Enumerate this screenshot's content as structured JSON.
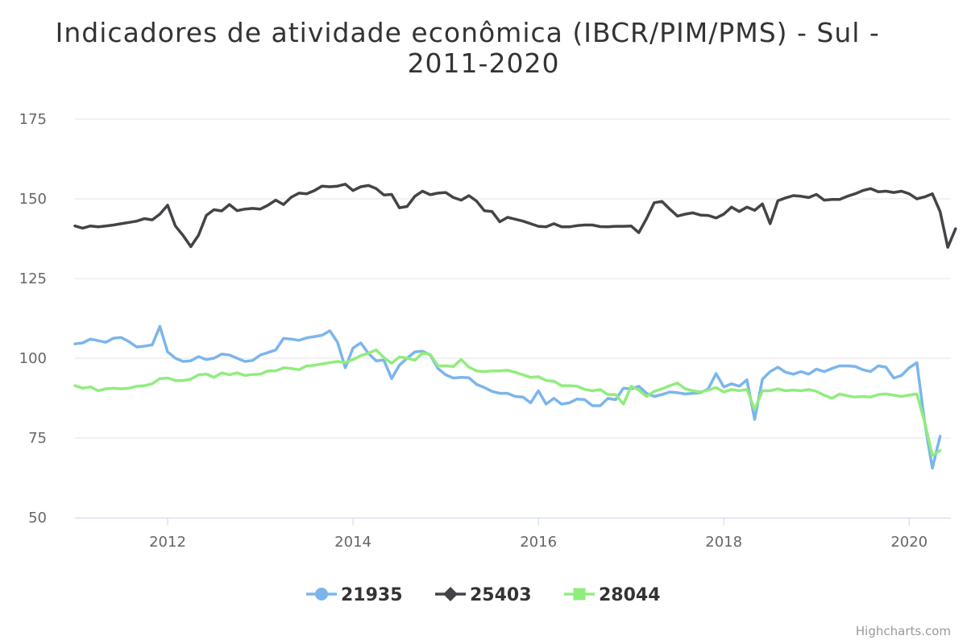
{
  "chart_data": {
    "type": "line",
    "title": "Indicadores de atividade econômica (IBCR/PIM/PMS) - Sul -",
    "title_line2": "2011-2020",
    "credits": "Highcharts.com",
    "xlim": [
      2011.0,
      2020.45
    ],
    "ylim": [
      50,
      175
    ],
    "y_ticks": [
      "50",
      "75",
      "100",
      "125",
      "150",
      "175"
    ],
    "x_ticks": [
      "2012",
      "2014",
      "2016",
      "2018",
      "2020"
    ],
    "grid": true,
    "legend_position": "bottom-center",
    "series": [
      {
        "name": "21935",
        "color": "#7cb5ec",
        "marker": "circle",
        "start": 2011.0,
        "step_months": 1,
        "values": [
          104.5,
          104.8,
          106.0,
          105.5,
          105.0,
          106.3,
          106.5,
          105.2,
          103.5,
          103.8,
          104.2,
          110.0,
          102.0,
          100.0,
          99.0,
          99.2,
          100.5,
          99.6,
          100.0,
          101.3,
          101.0,
          100.0,
          99.0,
          99.3,
          101.0,
          101.8,
          102.6,
          106.2,
          106.0,
          105.6,
          106.4,
          106.8,
          107.2,
          108.6,
          105.0,
          97.0,
          103.2,
          104.8,
          101.5,
          99.2,
          99.4,
          93.6,
          97.8,
          100.0,
          102.0,
          102.2,
          101.0,
          96.8,
          94.8,
          93.8,
          94.0,
          93.9,
          91.8,
          90.8,
          89.6,
          89.0,
          89.0,
          88.0,
          87.8,
          86.0,
          89.8,
          85.6,
          87.4,
          85.6,
          86.0,
          87.2,
          87.0,
          85.1,
          85.1,
          87.4,
          87.0,
          90.6,
          90.4,
          91.2,
          89.0,
          88.0,
          88.6,
          89.4,
          89.2,
          88.8,
          89.0,
          89.2,
          90.4,
          95.2,
          91.0,
          92.0,
          91.2,
          93.2,
          80.8,
          93.4,
          95.8,
          97.2,
          95.6,
          95.0,
          95.8,
          95.0,
          96.6,
          95.8,
          96.8,
          97.6,
          97.6,
          97.4,
          96.4,
          95.8,
          97.6,
          97.2,
          93.8,
          94.6,
          97.0,
          98.6,
          80.0,
          65.5,
          75.5
        ]
      },
      {
        "name": "25403",
        "color": "#434348",
        "marker": "diamond",
        "start": 2011.0,
        "step_months": 1,
        "values": [
          141.5,
          140.8,
          141.5,
          141.2,
          141.5,
          141.8,
          142.2,
          142.6,
          143.0,
          143.8,
          143.4,
          145.2,
          148.0,
          141.5,
          138.5,
          135.0,
          138.6,
          144.8,
          146.6,
          146.2,
          148.2,
          146.3,
          146.8,
          147.0,
          146.8,
          148.0,
          149.6,
          148.2,
          150.5,
          151.8,
          151.6,
          152.6,
          154.0,
          153.8,
          154.0,
          154.6,
          152.6,
          153.8,
          154.2,
          153.2,
          151.2,
          151.4,
          147.2,
          147.6,
          150.8,
          152.4,
          151.3,
          151.8,
          152.0,
          150.4,
          149.6,
          151.0,
          149.3,
          146.3,
          146.0,
          142.8,
          144.2,
          143.6,
          143.0,
          142.2,
          141.4,
          141.2,
          142.2,
          141.2,
          141.2,
          141.6,
          141.8,
          141.8,
          141.3,
          141.2,
          141.4,
          141.4,
          141.5,
          139.4,
          143.8,
          148.8,
          149.2,
          146.8,
          144.6,
          145.2,
          145.6,
          144.9,
          144.8,
          144.0,
          145.2,
          147.4,
          146.0,
          147.4,
          146.4,
          148.4,
          142.2,
          149.4,
          150.3,
          151.0,
          150.8,
          150.4,
          151.4,
          149.6,
          149.8,
          149.8,
          150.8,
          151.6,
          152.6,
          153.2,
          152.2,
          152.4,
          152.0,
          152.4,
          151.6,
          150.0,
          150.6,
          151.6,
          146.0,
          134.8,
          140.6
        ]
      },
      {
        "name": "28044",
        "color": "#90ed7d",
        "marker": "square",
        "start": 2011.0,
        "step_months": 1,
        "values": [
          91.4,
          90.6,
          91.0,
          89.8,
          90.4,
          90.6,
          90.4,
          90.6,
          91.2,
          91.4,
          92.0,
          93.6,
          93.8,
          93.0,
          93.0,
          93.4,
          94.8,
          95.0,
          94.0,
          95.4,
          94.8,
          95.4,
          94.6,
          94.9,
          95.0,
          96.0,
          96.0,
          97.0,
          96.8,
          96.4,
          97.6,
          97.8,
          98.2,
          98.6,
          99.0,
          98.6,
          99.6,
          100.8,
          101.6,
          102.6,
          100.2,
          98.4,
          100.4,
          100.0,
          99.4,
          101.6,
          101.2,
          97.6,
          97.6,
          97.4,
          99.6,
          97.2,
          96.0,
          95.8,
          96.0,
          96.0,
          96.2,
          95.6,
          94.8,
          94.0,
          94.2,
          93.0,
          92.8,
          91.4,
          91.4,
          91.2,
          90.2,
          89.8,
          90.2,
          88.6,
          88.6,
          85.6,
          91.2,
          90.0,
          88.0,
          89.6,
          90.4,
          91.4,
          92.2,
          90.4,
          89.8,
          89.4,
          90.0,
          90.8,
          89.4,
          90.2,
          89.8,
          90.2,
          84.0,
          89.8,
          89.8,
          90.4,
          89.8,
          90.0,
          89.8,
          90.2,
          89.6,
          88.4,
          87.4,
          88.8,
          88.2,
          87.8,
          88.0,
          87.8,
          88.6,
          88.8,
          88.4,
          88.0,
          88.4,
          88.8,
          80.0,
          69.5,
          71.0
        ]
      }
    ]
  }
}
